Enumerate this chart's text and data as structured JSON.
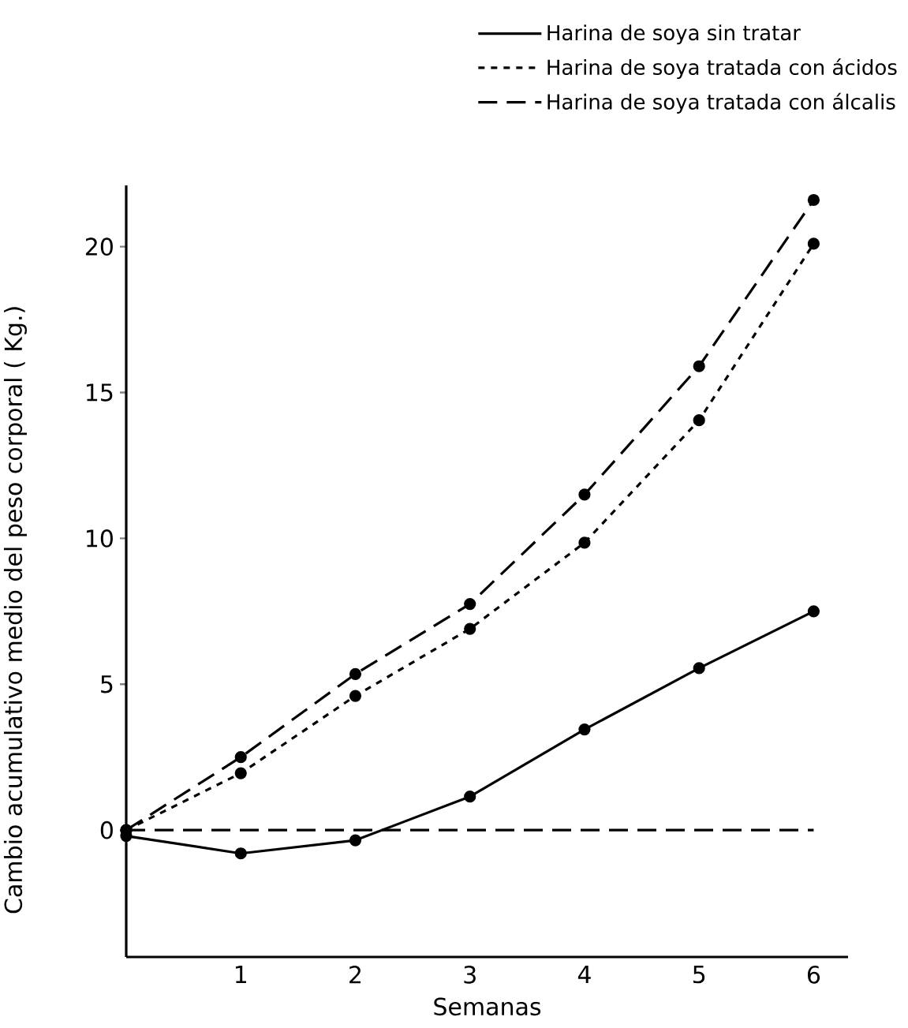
{
  "chart_data": {
    "type": "line",
    "xlabel": "Semanas",
    "ylabel": "Cambio acumulativo medio del peso corporal ( Kg.)",
    "x": [
      0,
      1,
      2,
      3,
      4,
      5,
      6
    ],
    "series": [
      {
        "name": "Harina de soya sin tratar",
        "color": "#000000",
        "line_style": "solid",
        "values": [
          -0.2,
          -0.8,
          -0.35,
          1.15,
          3.45,
          5.55,
          7.5
        ]
      },
      {
        "name": "Harina de soya tratada con ácidos",
        "color": "#000000",
        "line_style": "dashed",
        "values": [
          0,
          1.95,
          4.6,
          6.9,
          9.85,
          14.05,
          20.1
        ]
      },
      {
        "name": "Harina de soya tratada con álcalis",
        "color": "#000000",
        "line_style": "dashed",
        "values": [
          0,
          2.5,
          5.35,
          7.75,
          11.5,
          15.9,
          21.6
        ]
      }
    ],
    "xlim": [
      0,
      6.3
    ],
    "ylim": [
      -4.35,
      22.1
    ],
    "xticks": [
      1,
      2,
      3,
      4,
      5,
      6
    ],
    "yticks": [
      0,
      5,
      10,
      15,
      20
    ],
    "ref_lines": [
      {
        "axis": "y",
        "value": 0,
        "line_style": "dashed"
      }
    ],
    "marker": "circle",
    "legend": "top right",
    "grid": false
  }
}
